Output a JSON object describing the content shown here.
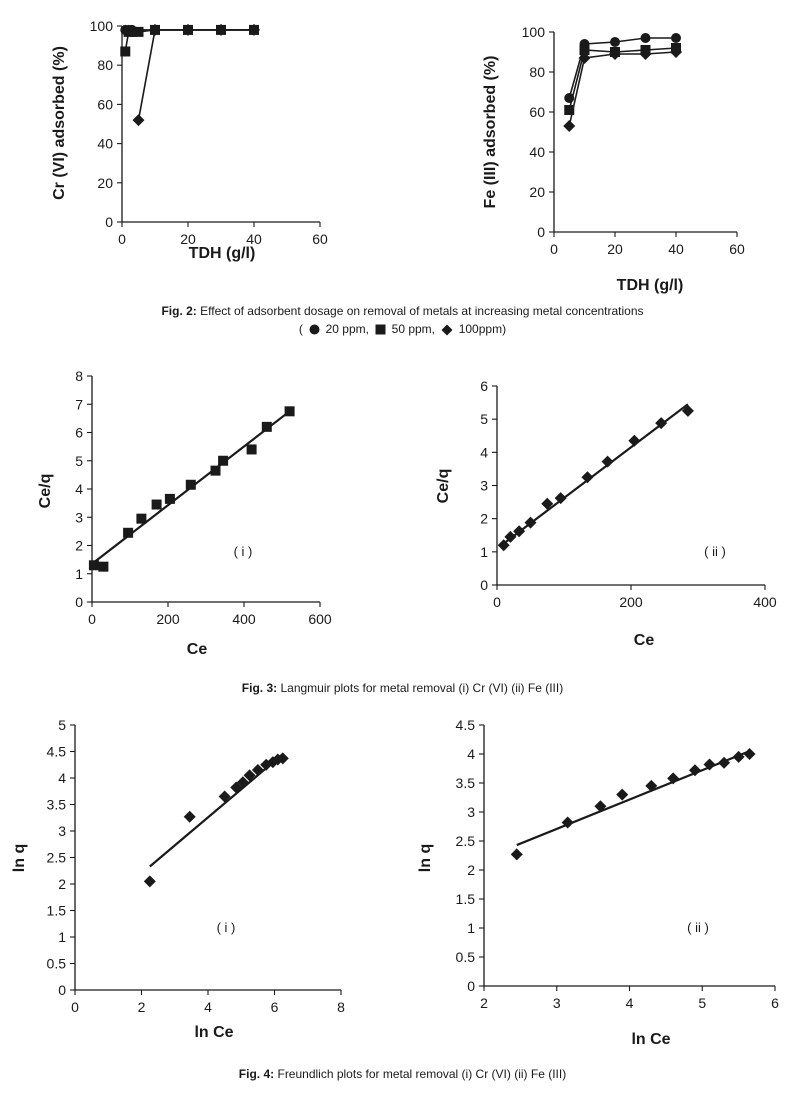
{
  "figures": [
    {
      "number": "Fig. 2:",
      "caption": "Effect of adsorbent dosage on removal of metals at increasing metal concentrations"
    },
    {
      "number": "Fig. 3:",
      "caption": "Langmuir plots for metal removal (i) Cr (VI) (ii) Fe (III)"
    },
    {
      "number": "Fig. 4:",
      "caption": "Freundlich plots for metal removal (i) Cr (VI) (ii) Fe (III)"
    }
  ],
  "fig2_legend": {
    "open": "(",
    "items": [
      "20 ppm,",
      "50 ppm,",
      "100ppm)"
    ]
  },
  "chart_data": [
    {
      "id": "fig2a",
      "type": "scatter-line",
      "xlabel": "TDH (g/l)",
      "ylabel": "Cr (VI) adsorbed (%)",
      "xlim": [
        0,
        60
      ],
      "ylim": [
        0,
        100
      ],
      "xticks": [
        0,
        20,
        40,
        60
      ],
      "yticks": [
        0,
        20,
        40,
        60,
        80,
        100
      ],
      "series": [
        {
          "name": "20 ppm",
          "marker": "circle",
          "x": [
            1,
            2,
            3,
            10,
            20,
            30,
            40
          ],
          "y": [
            98,
            98,
            98,
            98,
            98,
            98,
            98
          ]
        },
        {
          "name": "50 ppm",
          "marker": "square",
          "x": [
            1,
            2,
            3,
            5,
            10,
            20,
            30,
            40
          ],
          "y": [
            87,
            97,
            97,
            97,
            98,
            98,
            98,
            98
          ]
        },
        {
          "name": "100ppm",
          "marker": "diamond",
          "x": [
            5,
            10,
            20,
            30,
            40
          ],
          "y": [
            52,
            98,
            98,
            98,
            98
          ]
        }
      ]
    },
    {
      "id": "fig2b",
      "type": "scatter-line",
      "xlabel": "TDH (g/l)",
      "ylabel": "Fe (III) adsorbed (%)",
      "xlim": [
        0,
        60
      ],
      "ylim": [
        0,
        100
      ],
      "xticks": [
        0,
        20,
        40,
        60
      ],
      "yticks": [
        0,
        20,
        40,
        60,
        80,
        100
      ],
      "series": [
        {
          "name": "20 ppm",
          "marker": "circle",
          "x": [
            5,
            10,
            20,
            30,
            40
          ],
          "y": [
            67,
            94,
            95,
            97,
            97
          ]
        },
        {
          "name": "50 ppm",
          "marker": "square",
          "x": [
            5,
            10,
            20,
            30,
            40
          ],
          "y": [
            61,
            91,
            90,
            91,
            92
          ]
        },
        {
          "name": "100ppm",
          "marker": "diamond",
          "x": [
            5,
            10,
            20,
            30,
            40
          ],
          "y": [
            53,
            87,
            89,
            89,
            90
          ]
        }
      ]
    },
    {
      "id": "fig3a",
      "type": "scatter",
      "xlabel": "Ce",
      "ylabel": "Ce/q",
      "annotation": "( i )",
      "xlim": [
        0,
        600
      ],
      "ylim": [
        0,
        8
      ],
      "xticks": [
        0,
        200,
        400,
        600
      ],
      "yticks": [
        0,
        1,
        2,
        3,
        4,
        5,
        6,
        7,
        8
      ],
      "marker": "square",
      "points": {
        "x": [
          5,
          30,
          95,
          130,
          170,
          205,
          260,
          325,
          345,
          420,
          460,
          520
        ],
        "y": [
          1.3,
          1.25,
          2.45,
          2.95,
          3.45,
          3.65,
          4.15,
          4.65,
          5.0,
          5.4,
          6.2,
          6.75
        ]
      },
      "fit": {
        "x": [
          0,
          520
        ],
        "y": [
          1.35,
          6.75
        ]
      }
    },
    {
      "id": "fig3b",
      "type": "scatter",
      "xlabel": "Ce",
      "ylabel": "Ce/q",
      "annotation": "( ii )",
      "xlim": [
        0,
        400
      ],
      "ylim": [
        0,
        6
      ],
      "xticks": [
        0,
        200,
        400
      ],
      "yticks": [
        0,
        1,
        2,
        3,
        4,
        5,
        6
      ],
      "marker": "diamond",
      "points": {
        "x": [
          10,
          20,
          33,
          50,
          75,
          95,
          135,
          165,
          205,
          245,
          285
        ],
        "y": [
          1.2,
          1.45,
          1.62,
          1.88,
          2.45,
          2.62,
          3.25,
          3.72,
          4.35,
          4.88,
          5.25
        ]
      },
      "fit": {
        "x": [
          10,
          285
        ],
        "y": [
          1.25,
          5.45
        ]
      }
    },
    {
      "id": "fig4a",
      "type": "scatter",
      "xlabel": "ln Ce",
      "ylabel": "ln q",
      "annotation": "( i )",
      "xlim": [
        0,
        8
      ],
      "ylim": [
        0,
        5
      ],
      "xticks": [
        0,
        2,
        4,
        6,
        8
      ],
      "yticks": [
        0,
        0.5,
        1,
        1.5,
        2,
        2.5,
        3,
        3.5,
        4,
        4.5,
        5
      ],
      "marker": "diamond",
      "points": {
        "x": [
          2.25,
          3.45,
          4.5,
          4.85,
          5.05,
          5.25,
          5.5,
          5.75,
          5.95,
          6.1,
          6.25
        ],
        "y": [
          2.05,
          3.27,
          3.65,
          3.82,
          3.92,
          4.05,
          4.15,
          4.25,
          4.3,
          4.35,
          4.37
        ]
      },
      "fit": {
        "x": [
          2.25,
          6.25
        ],
        "y": [
          2.33,
          4.45
        ]
      }
    },
    {
      "id": "fig4b",
      "type": "scatter",
      "xlabel": "ln Ce",
      "ylabel": "ln q",
      "annotation": "( ii )",
      "xlim": [
        2,
        6
      ],
      "ylim": [
        0,
        4.5
      ],
      "xticks": [
        2,
        3,
        4,
        5,
        6
      ],
      "yticks": [
        0,
        0.5,
        1,
        1.5,
        2,
        2.5,
        3,
        3.5,
        4,
        4.5
      ],
      "marker": "diamond",
      "points": {
        "x": [
          2.45,
          3.15,
          3.6,
          3.9,
          4.3,
          4.6,
          4.9,
          5.1,
          5.3,
          5.5,
          5.65
        ],
        "y": [
          2.27,
          2.82,
          3.1,
          3.3,
          3.45,
          3.58,
          3.72,
          3.82,
          3.85,
          3.95,
          4.0
        ]
      },
      "fit": {
        "x": [
          2.45,
          5.65
        ],
        "y": [
          2.43,
          4.05
        ]
      }
    }
  ]
}
